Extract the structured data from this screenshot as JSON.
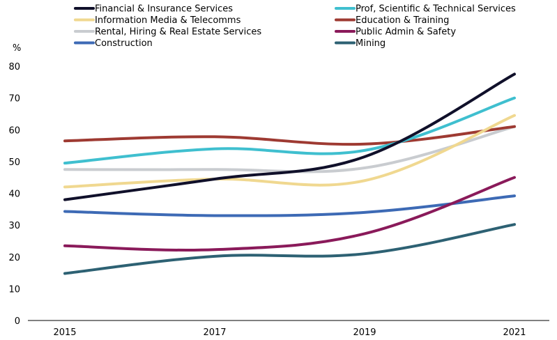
{
  "chart_data": {
    "type": "line",
    "ylabel": "%",
    "ylim": [
      0,
      80
    ],
    "yticks": [
      0,
      10,
      20,
      30,
      40,
      50,
      60,
      70,
      80
    ],
    "x": [
      "2015",
      "2017",
      "2019",
      "2021"
    ],
    "grid": false,
    "legend_position": "top",
    "series": [
      {
        "name": "Financial & Insurance Services",
        "color": "#10102a",
        "values": [
          38,
          44.5,
          51.5,
          77.5
        ]
      },
      {
        "name": "Prof, Scientific & Technical Services",
        "color": "#3fbfcf",
        "values": [
          49.5,
          54,
          53.5,
          70
        ]
      },
      {
        "name": "Information Media & Telecomms",
        "color": "#f0d890",
        "values": [
          42,
          44.5,
          44,
          64.5
        ]
      },
      {
        "name": "Education & Training",
        "color": "#9e3a32",
        "values": [
          56.5,
          57.8,
          55.5,
          61
        ]
      },
      {
        "name": "Rental, Hiring & Real Estate Services",
        "color": "#c9ccd0",
        "values": [
          47.5,
          47.5,
          48,
          61
        ]
      },
      {
        "name": "Public Admin & Safety",
        "color": "#8a1a5a",
        "values": [
          23.5,
          22.3,
          27.3,
          45
        ]
      },
      {
        "name": "Construction",
        "color": "#3d6ab5",
        "values": [
          34.3,
          33,
          34,
          39.2
        ]
      },
      {
        "name": "Mining",
        "color": "#2d6173",
        "values": [
          14.8,
          20.2,
          21,
          30.2
        ]
      }
    ]
  }
}
